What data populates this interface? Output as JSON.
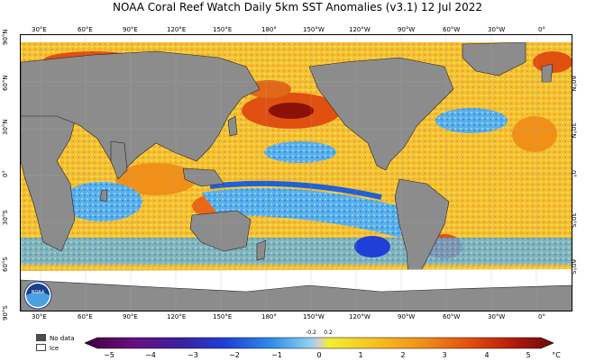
{
  "title": "NOAA Coral Reef Watch Daily 5km SST Anomalies  (v3.1)   12 Jul 2022",
  "lon_ticks_top": [
    "30°E",
    "60°E",
    "90°E",
    "120°E",
    "150°E",
    "180°",
    "150°W",
    "120°W",
    "90°W",
    "60°W",
    "30°W",
    "0°"
  ],
  "lon_ticks_bottom": [
    "30°E",
    "60°E",
    "90°E",
    "120°E",
    "150°E",
    "180°",
    "150°W",
    "120°W",
    "90°W",
    "60°W",
    "30°W",
    "0°"
  ],
  "lat_ticks_left": [
    "90°N",
    "60°N",
    "30°N",
    "0°",
    "30°S",
    "60°S",
    "90°S"
  ],
  "lat_ticks_right": [
    "60°N",
    "30°N",
    "0°",
    "30°S",
    "60°S"
  ],
  "legend": {
    "no_data_label": "No data",
    "ice_label": "Ice",
    "no_data_color": "#4d4d4d",
    "ice_color": "#ffffff"
  },
  "colorbar": {
    "ticks": [
      "−5",
      "−4",
      "−3",
      "−2",
      "−1",
      "0",
      "1",
      "2",
      "3",
      "4",
      "5"
    ],
    "small_ticks": [
      "-0.2",
      "0.2"
    ],
    "unit": "°C",
    "colors": [
      "#3d003f",
      "#6a0f7e",
      "#3d1f9e",
      "#1f3fd8",
      "#2f8fe8",
      "#8fd0f0",
      "#d0d0d0",
      "#f4ee30",
      "#f7c020",
      "#f09018",
      "#e05010",
      "#b01808",
      "#6a0a0a"
    ]
  },
  "logo_text": "NOAA",
  "colors": {
    "land": "#8c8c8c",
    "ice": "#ffffff",
    "warm": "#f0a020",
    "cool": "#4aa8e8"
  }
}
